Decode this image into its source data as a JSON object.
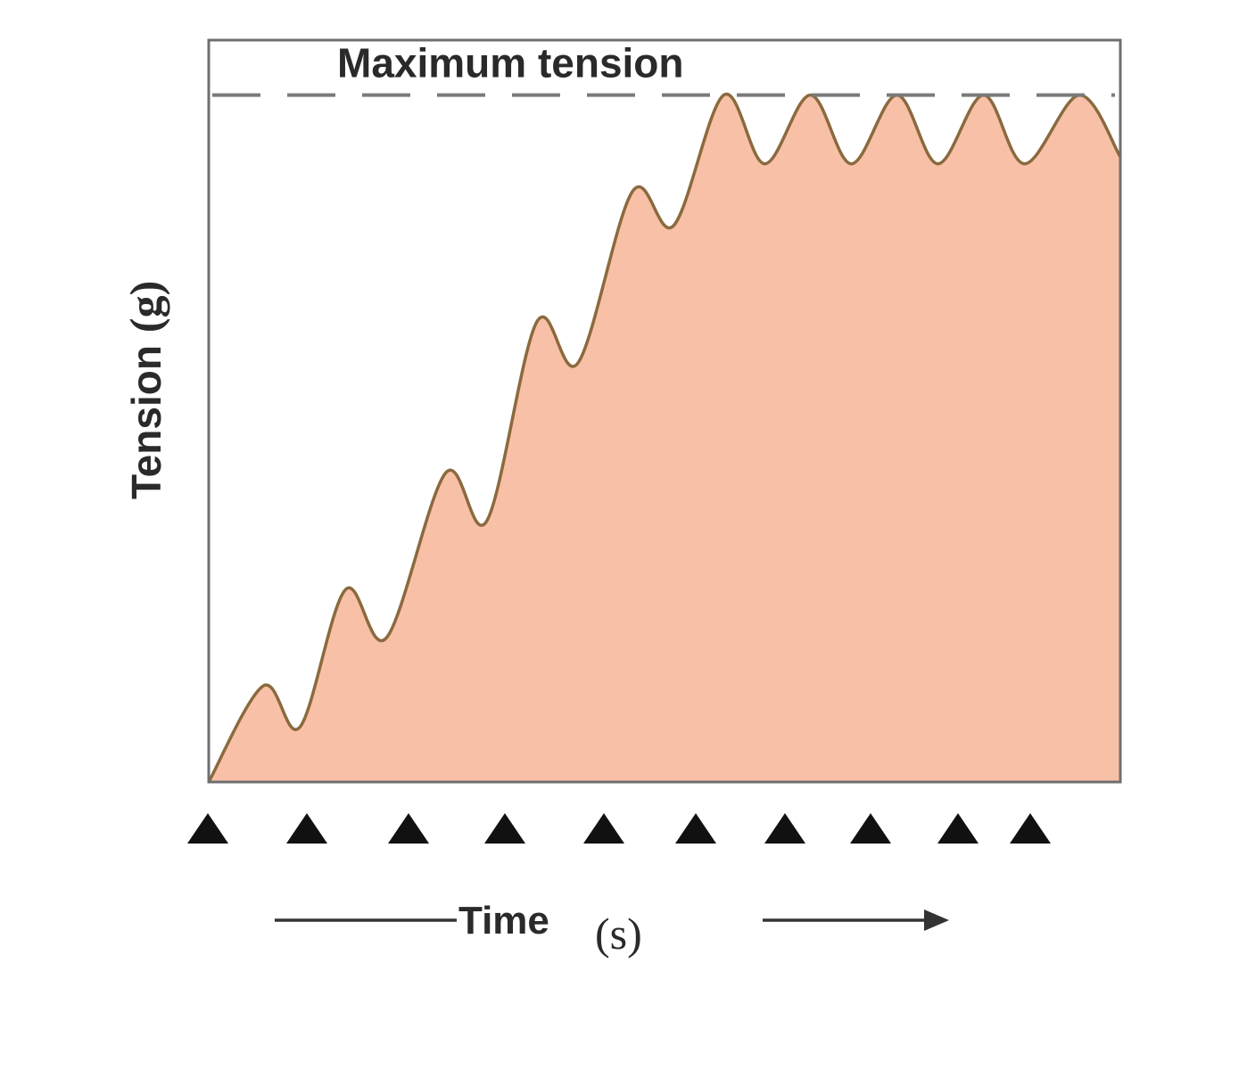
{
  "chart_data": {
    "type": "area",
    "title": "",
    "xlabel": "Time",
    "xlabel_unit": "(s)",
    "ylabel": "Tension",
    "ylabel_unit": "(g)",
    "ticks": "none",
    "grid": false,
    "annotation": "Maximum tension",
    "max_tension": 1.0,
    "ylim": [
      0,
      1.08
    ],
    "xlim": [
      0,
      10
    ],
    "stimuli_marker": "filled-triangle",
    "stimuli_times": [
      0,
      1,
      2,
      3,
      4,
      5,
      6,
      7,
      8,
      9
    ],
    "series": [
      {
        "color": "#f9c0a8",
        "line_color": "#8a6a3e",
        "points": [
          [
            0,
            0.0
          ],
          [
            0.6,
            0.14
          ],
          [
            1.0,
            0.08
          ],
          [
            1.5,
            0.28
          ],
          [
            1.95,
            0.21
          ],
          [
            2.6,
            0.45
          ],
          [
            3.05,
            0.38
          ],
          [
            3.6,
            0.67
          ],
          [
            4.05,
            0.61
          ],
          [
            4.65,
            0.86
          ],
          [
            5.1,
            0.81
          ],
          [
            5.65,
            1.0
          ],
          [
            6.1,
            0.9
          ],
          [
            6.6,
            1.0
          ],
          [
            7.05,
            0.9
          ],
          [
            7.55,
            1.0
          ],
          [
            8.0,
            0.9
          ],
          [
            8.5,
            1.0
          ],
          [
            8.95,
            0.9
          ],
          [
            9.55,
            1.0
          ],
          [
            10.0,
            0.91
          ]
        ]
      }
    ],
    "colors": {
      "fill": "#f9c0a8",
      "line": "#8a6a3e",
      "dashed_line": "#7a7a7a"
    }
  }
}
